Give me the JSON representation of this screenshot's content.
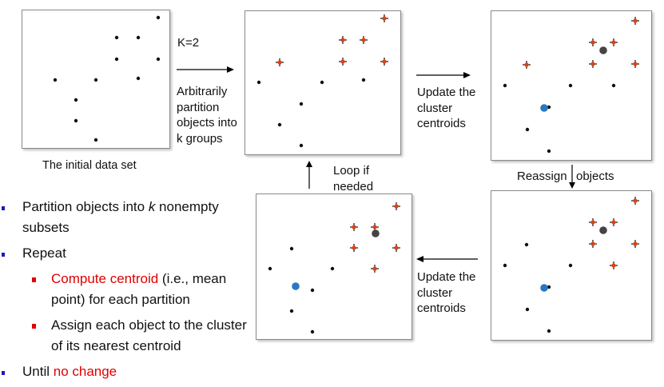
{
  "panels": {
    "initial": {
      "points": [
        [
          170,
          9
        ],
        [
          118,
          34
        ],
        [
          145,
          34
        ],
        [
          170,
          61
        ],
        [
          118,
          61
        ],
        [
          41,
          87
        ],
        [
          92,
          87
        ],
        [
          145,
          85
        ],
        [
          67,
          112
        ],
        [
          67,
          138
        ],
        [
          92,
          162
        ]
      ]
    },
    "partition": {
      "points": [
        [
          174,
          9
        ],
        [
          122,
          36
        ],
        [
          148,
          36
        ],
        [
          174,
          63
        ],
        [
          122,
          63
        ],
        [
          148,
          86
        ],
        [
          17,
          89
        ],
        [
          96,
          89
        ],
        [
          70,
          116
        ],
        [
          43,
          142
        ],
        [
          70,
          168
        ]
      ]
    },
    "update1": {
      "points": [
        [
          180,
          12
        ],
        [
          127,
          39
        ],
        [
          153,
          39
        ],
        [
          127,
          66
        ],
        [
          153,
          66
        ],
        [
          180,
          66
        ],
        [
          44,
          67
        ],
        [
          17,
          93
        ],
        [
          99,
          93
        ],
        [
          153,
          93
        ],
        [
          72,
          120
        ],
        [
          45,
          148
        ],
        [
          72,
          175
        ]
      ]
    },
    "reassign": {
      "points": [
        [
          180,
          12
        ],
        [
          127,
          39
        ],
        [
          153,
          39
        ],
        [
          127,
          66
        ],
        [
          153,
          66
        ],
        [
          180,
          66
        ],
        [
          44,
          67
        ],
        [
          17,
          93
        ],
        [
          99,
          93
        ],
        [
          153,
          93
        ],
        [
          72,
          120
        ],
        [
          45,
          148
        ],
        [
          72,
          175
        ]
      ]
    },
    "update2": {
      "points": [
        [
          175,
          15
        ],
        [
          122,
          41
        ],
        [
          148,
          41
        ],
        [
          122,
          67
        ],
        [
          148,
          67
        ],
        [
          175,
          67
        ],
        [
          44,
          68
        ],
        [
          17,
          93
        ],
        [
          95,
          93
        ],
        [
          148,
          93
        ],
        [
          70,
          120
        ],
        [
          44,
          146
        ],
        [
          70,
          172
        ]
      ]
    }
  },
  "labels": {
    "initial_caption": "The initial data set",
    "k": "K=2",
    "partition": [
      "Arbitrarily",
      "partition",
      "objects into",
      "k groups"
    ],
    "update_top": [
      "Update the",
      "cluster",
      "centroids"
    ],
    "reassign_left": "Reassign",
    "reassign_right": "objects",
    "loop": [
      "Loop if",
      "needed"
    ],
    "update_bottom": [
      "Update the",
      "cluster",
      "centroids"
    ]
  },
  "bullets": {
    "partition_pre": "Partition objects into ",
    "partition_k": "k",
    "partition_post": " nonempty subsets",
    "repeat": "Repeat",
    "compute_red": "Compute centroid",
    "compute_rest": " (i.e., mean point) for each partition",
    "assign": "Assign each object to the cluster of its nearest centroid",
    "until_pre": "Until ",
    "until_red": "no change"
  }
}
